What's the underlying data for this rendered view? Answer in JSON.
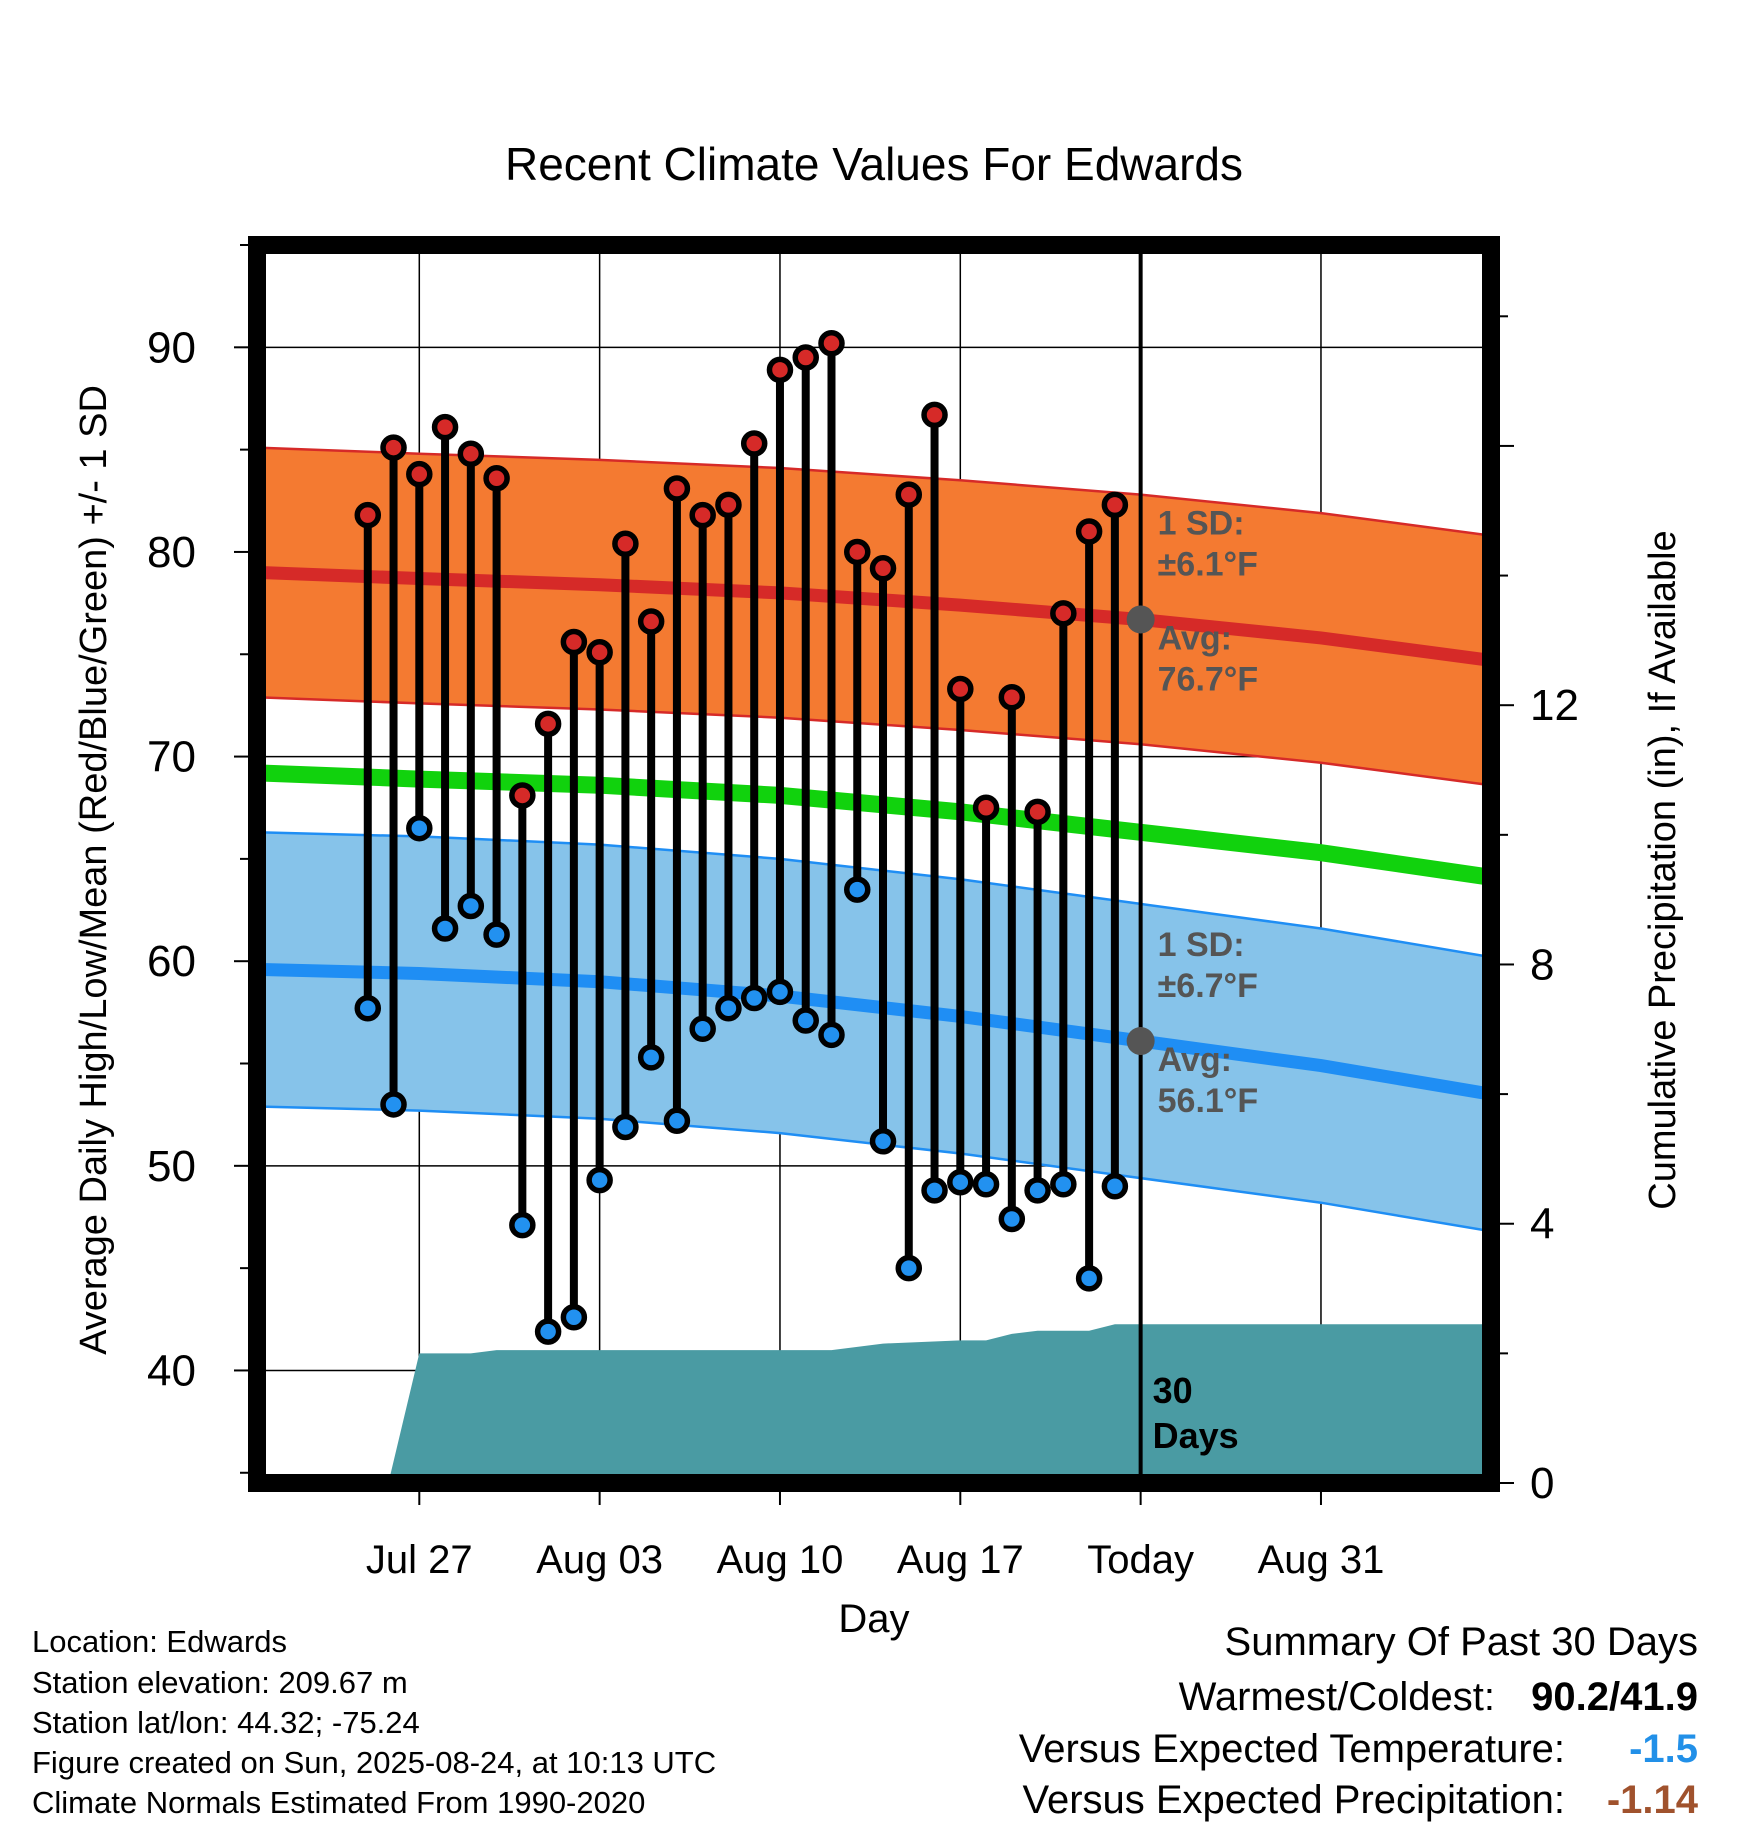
{
  "chart_data": {
    "type": "line",
    "title": "Recent Climate Values For Edwards",
    "xlabel": "Day",
    "ylabel": "Average Daily High/Low/Mean (Red/Blue/Green) +/- 1 SD",
    "y2label": "Cumulative Precipitation (in), If Available",
    "ylim": [
      34.5,
      95
    ],
    "y2lim": [
      0,
      19.1
    ],
    "xlim": [
      -34.3,
      13.6
    ],
    "x_ticks": [
      {
        "x": -28,
        "label": "Jul 27"
      },
      {
        "x": -21,
        "label": "Aug 03"
      },
      {
        "x": -14,
        "label": "Aug 10"
      },
      {
        "x": -7,
        "label": "Aug 17"
      },
      {
        "x": 0,
        "label": "Today"
      },
      {
        "x": 7,
        "label": "Aug 31"
      }
    ],
    "y_ticks": [
      40,
      50,
      60,
      70,
      80,
      90
    ],
    "y2_ticks": [
      0,
      4,
      8,
      12
    ],
    "grid": true,
    "today_line_x": 0,
    "today_label": "30\nDays",
    "days": [
      -30,
      -29,
      -28,
      -27,
      -26,
      -25,
      -24,
      -23,
      -22,
      -21,
      -20,
      -19,
      -18,
      -17,
      -16,
      -15,
      -14,
      -13,
      -12,
      -11,
      -10,
      -9,
      -8,
      -7,
      -6,
      -5,
      -4,
      -3,
      -2,
      -1
    ],
    "daily_high": [
      81.8,
      85.1,
      83.8,
      86.1,
      84.8,
      83.6,
      68.1,
      71.6,
      75.6,
      75.1,
      80.4,
      76.6,
      83.1,
      81.8,
      82.3,
      85.3,
      88.9,
      89.5,
      90.2,
      80.0,
      79.2,
      82.8,
      86.7,
      73.3,
      67.5,
      72.9,
      67.3,
      77.0,
      81.0,
      82.3
    ],
    "daily_low": [
      57.7,
      53.0,
      66.5,
      61.6,
      62.7,
      61.3,
      47.1,
      41.9,
      42.6,
      49.3,
      51.9,
      55.3,
      52.2,
      56.7,
      57.7,
      58.2,
      58.5,
      57.1,
      56.4,
      63.5,
      51.2,
      45.0,
      48.8,
      49.2,
      49.1,
      47.4,
      48.8,
      49.1,
      44.5,
      49.0
    ],
    "normal_high": {
      "x": [
        -34.3,
        -28,
        -21,
        -14,
        -7,
        0,
        7,
        13.6
      ],
      "mean": [
        79.0,
        78.7,
        78.4,
        78.0,
        77.4,
        76.7,
        75.8,
        74.7
      ],
      "sd": 6.1
    },
    "normal_low": {
      "x": [
        -34.3,
        -28,
        -21,
        -14,
        -7,
        0,
        7,
        13.6
      ],
      "mean": [
        59.6,
        59.4,
        59.0,
        58.3,
        57.3,
        56.1,
        54.9,
        53.5
      ],
      "sd": 6.7
    },
    "normal_mean": {
      "x": [
        -34.3,
        -28,
        -21,
        -14,
        -7,
        0,
        7,
        13.6
      ],
      "values": [
        69.2,
        68.9,
        68.6,
        68.1,
        67.3,
        66.3,
        65.3,
        64.1
      ]
    },
    "precip": {
      "x": [
        -29.2,
        -28,
        -27,
        -26,
        -25,
        -24,
        -21,
        -14,
        -12,
        -10,
        -7,
        -6,
        -5,
        -4,
        -3,
        -2,
        -1,
        0,
        13.6
      ],
      "cumulative": [
        0,
        2.0,
        2.0,
        2.0,
        2.05,
        2.05,
        2.05,
        2.05,
        2.05,
        2.15,
        2.2,
        2.2,
        2.3,
        2.35,
        2.35,
        2.35,
        2.45,
        2.45,
        2.45
      ]
    },
    "annotations": {
      "high_sd": [
        "1 SD:",
        "±6.1°F"
      ],
      "high_avg": [
        "Avg:",
        "76.7°F"
      ],
      "low_sd": [
        "1 SD:",
        "±6.7°F"
      ],
      "low_avg": [
        "Avg:",
        "56.1°F"
      ]
    },
    "colors": {
      "high_band": "#f47a31",
      "high_line": "#d62a28",
      "low_band": "#86c3ea",
      "low_line": "#1f8ef4",
      "mean_line": "#11d20d",
      "precip": "#4a9ba3",
      "high_marker": "#d62a28",
      "low_marker": "#2291f0",
      "annotation_text": "#555555"
    }
  },
  "info": {
    "location": "Location: Edwards",
    "elevation": "Station elevation: 209.67 m",
    "latlon": "Station lat/lon: 44.32; -75.24",
    "created": "Figure created on Sun, 2025-08-24, at 10:13 UTC",
    "normals": "Climate Normals Estimated From 1990-2020"
  },
  "summary": {
    "heading": "Summary Of Past 30 Days",
    "warm_cold_label": "Warmest/Coldest:",
    "warm_cold_value": "90.2/41.9",
    "temp_label": "Versus Expected Temperature:",
    "temp_value": "-1.5",
    "temp_color": "#2290e8",
    "precip_label": "Versus Expected Precipitation:",
    "precip_value": "-1.14",
    "precip_color": "#a0522d"
  }
}
